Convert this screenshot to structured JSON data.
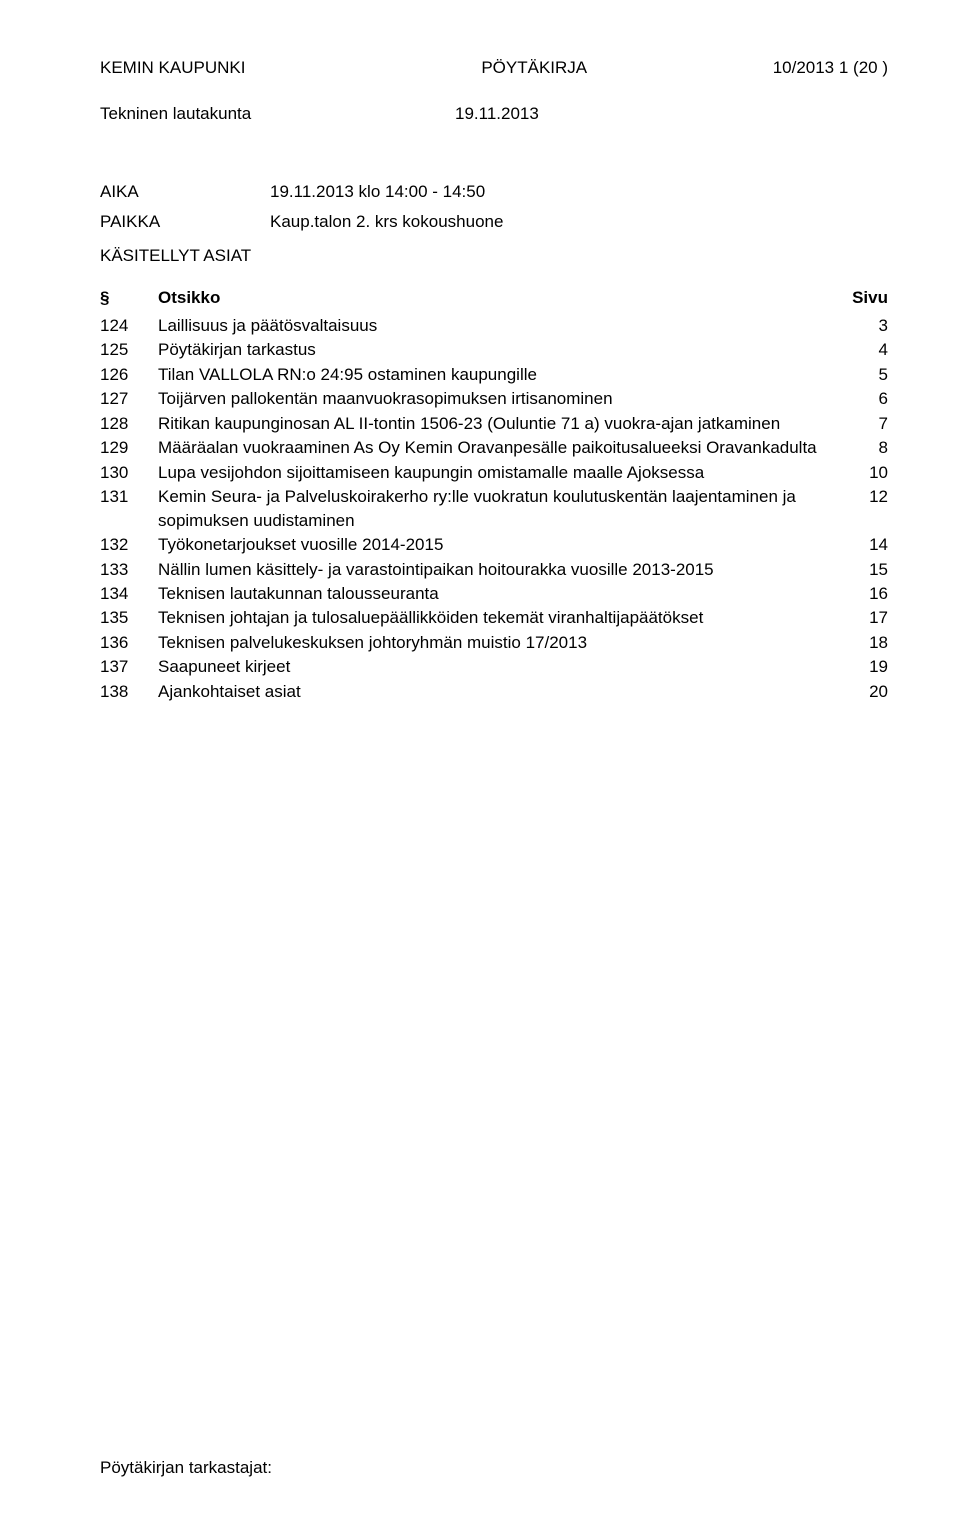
{
  "header": {
    "org": "KEMIN KAUPUNKI",
    "doc_type": "PÖYTÄKIRJA",
    "page_ref": "10/2013  1 (20 )"
  },
  "subheader": {
    "left": "Tekninen lautakunta",
    "right": "19.11.2013"
  },
  "meta": [
    {
      "label": "AIKA",
      "value": "19.11.2013 klo 14:00 - 14:50"
    },
    {
      "label": "PAIKKA",
      "value": "Kaup.talon 2. krs kokoushuone"
    }
  ],
  "section_title": "KÄSITELLYT ASIAT",
  "table_header": {
    "sym": "§",
    "title": "Otsikko",
    "page": "Sivu"
  },
  "toc": [
    {
      "num": "124",
      "title": "Laillisuus ja päätösvaltaisuus",
      "page": "3"
    },
    {
      "num": "125",
      "title": "Pöytäkirjan tarkastus",
      "page": "4"
    },
    {
      "num": "126",
      "title": "Tilan VALLOLA RN:o 24:95 ostaminen kaupungille",
      "page": "5"
    },
    {
      "num": "127",
      "title": "Toijärven pallokentän maanvuokrasopimuksen irtisanominen",
      "page": "6"
    },
    {
      "num": "128",
      "title": "Ritikan kaupunginosan AL II-tontin 1506-23 (Ouluntie 71 a) vuokra-ajan jatkaminen",
      "page": "7"
    },
    {
      "num": "129",
      "title": "Määräalan vuokraaminen As Oy Kemin Oravanpesälle paikoitusalueeksi Oravankadulta",
      "page": "8"
    },
    {
      "num": "130",
      "title": "Lupa vesijohdon sijoittamiseen kaupungin omistamalle maalle Ajoksessa",
      "page": "10"
    },
    {
      "num": "131",
      "title": "Kemin Seura- ja Palveluskoirakerho ry:lle vuokratun koulutuskentän laajentaminen ja sopimuksen uudistaminen",
      "page": "12"
    },
    {
      "num": "132",
      "title": "Työkonetarjoukset vuosille 2014-2015",
      "page": "14"
    },
    {
      "num": "133",
      "title": "Nällin lumen käsittely- ja varastointipaikan hoitourakka vuosille 2013-2015",
      "page": "15"
    },
    {
      "num": "134",
      "title": "Teknisen lautakunnan talousseuranta",
      "page": "16"
    },
    {
      "num": "135",
      "title": "Teknisen johtajan ja tulosaluepäällikköiden tekemät viranhaltijapäätökset",
      "page": "17"
    },
    {
      "num": "136",
      "title": "Teknisen palvelukeskuksen johtoryhmän muistio 17/2013",
      "page": "18"
    },
    {
      "num": "137",
      "title": "Saapuneet kirjeet",
      "page": "19"
    },
    {
      "num": "138",
      "title": "Ajankohtaiset asiat",
      "page": "20"
    }
  ],
  "footer": "Pöytäkirjan tarkastajat:"
}
